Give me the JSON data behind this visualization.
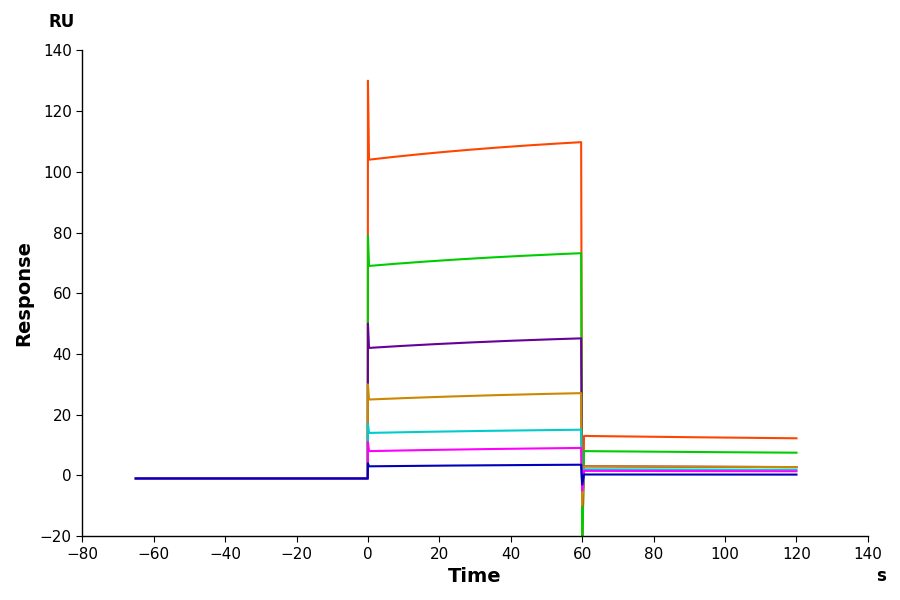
{
  "xlabel": "Time",
  "xlabel_unit": "s",
  "ylabel": "Response",
  "ylabel_top": "RU",
  "xlim": [
    -80,
    140
  ],
  "ylim": [
    -20,
    140
  ],
  "xticks": [
    -80,
    -60,
    -40,
    -20,
    0,
    20,
    40,
    60,
    80,
    100,
    120,
    140
  ],
  "yticks": [
    -20,
    0,
    20,
    40,
    60,
    80,
    100,
    120,
    140
  ],
  "background_color": "#ffffff",
  "curves": [
    {
      "color": "#FF4500",
      "baseline_val": -1.0,
      "spike_up": 130,
      "assoc_start_val": 104,
      "assoc_end_val": 115,
      "assoc_tau": 80,
      "spike_down": -22,
      "dissoc_start_val": 13,
      "dissoc_end_val": 10,
      "dissoc_tau": 200
    },
    {
      "color": "#00CC00",
      "baseline_val": -1.0,
      "spike_up": 79,
      "assoc_start_val": 69,
      "assoc_end_val": 77,
      "assoc_tau": 80,
      "spike_down": -22,
      "dissoc_start_val": 8,
      "dissoc_end_val": 6,
      "dissoc_tau": 200
    },
    {
      "color": "#660099",
      "baseline_val": -1.0,
      "spike_up": 50,
      "assoc_start_val": 42,
      "assoc_end_val": 48,
      "assoc_tau": 80,
      "spike_down": -10,
      "dissoc_start_val": 3,
      "dissoc_end_val": 2,
      "dissoc_tau": 200
    },
    {
      "color": "#CC8800",
      "baseline_val": -1.0,
      "spike_up": 30,
      "assoc_start_val": 25,
      "assoc_end_val": 29,
      "assoc_tau": 80,
      "spike_down": -10,
      "dissoc_start_val": 3,
      "dissoc_end_val": 2,
      "dissoc_tau": 200
    },
    {
      "color": "#00CCCC",
      "baseline_val": -1.0,
      "spike_up": 17,
      "assoc_start_val": 14,
      "assoc_end_val": 16,
      "assoc_tau": 80,
      "spike_down": -5,
      "dissoc_start_val": 2,
      "dissoc_end_val": 1.5,
      "dissoc_tau": 200
    },
    {
      "color": "#FF00FF",
      "baseline_val": -1.0,
      "spike_up": 11,
      "assoc_start_val": 8,
      "assoc_end_val": 10,
      "assoc_tau": 80,
      "spike_down": -5,
      "dissoc_start_val": 1.5,
      "dissoc_end_val": 1.0,
      "dissoc_tau": 200
    },
    {
      "color": "#0000BB",
      "baseline_val": -1.0,
      "spike_up": 4,
      "assoc_start_val": 3,
      "assoc_end_val": 4,
      "assoc_tau": 80,
      "spike_down": -3,
      "dissoc_start_val": 0.3,
      "dissoc_end_val": 0.2,
      "dissoc_tau": 200
    }
  ]
}
